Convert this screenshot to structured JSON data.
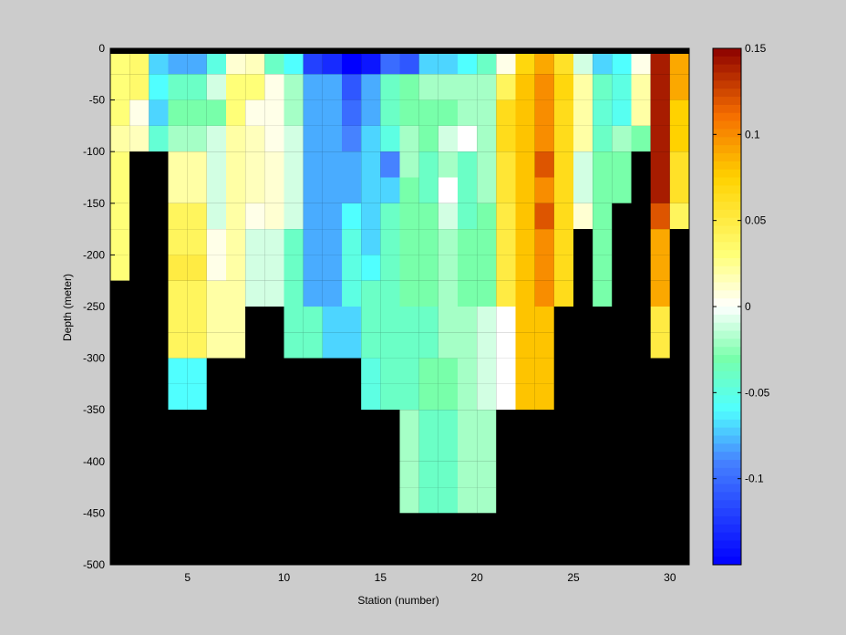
{
  "chart_data": {
    "type": "heatmap",
    "title": "",
    "xlabel": "Station (number)",
    "ylabel": "Depth (meter)",
    "xlim": [
      1,
      31
    ],
    "ylim": [
      -500,
      0
    ],
    "x_ticks": [
      5,
      10,
      15,
      20,
      25,
      30
    ],
    "y_ticks": [
      0,
      -50,
      -100,
      -150,
      -200,
      -250,
      -300,
      -350,
      -400,
      -450,
      -500
    ],
    "x_tick_labels": [
      "5",
      "10",
      "15",
      "20",
      "25",
      "30"
    ],
    "y_tick_labels": [
      "0",
      "-50",
      "-100",
      "-150",
      "-200",
      "-250",
      "-300",
      "-350",
      "-400",
      "-450",
      "-500"
    ],
    "stations": [
      1,
      2,
      3,
      4,
      5,
      6,
      7,
      8,
      9,
      10,
      11,
      12,
      13,
      14,
      15,
      16,
      17,
      18,
      19,
      20,
      21,
      22,
      23,
      24,
      25,
      26,
      27,
      28,
      29,
      30
    ],
    "depth_bins": [
      0,
      -25,
      -50,
      -75,
      -100,
      -125,
      -150,
      -175,
      -200,
      -225,
      -250,
      -275,
      -300,
      -325,
      -350,
      -375,
      -400,
      -425,
      -450,
      -475
    ],
    "values": [
      [
        0.03,
        0.035,
        -0.07,
        -0.08,
        -0.08,
        -0.05,
        0.01,
        0.015,
        -0.04,
        -0.06,
        -0.12,
        -0.13,
        -0.15,
        -0.14,
        -0.1,
        -0.11,
        -0.07,
        -0.07,
        -0.06,
        -0.04,
        0.005,
        0.07,
        0.09,
        0.06,
        -0.01,
        -0.07,
        -0.06,
        0.005,
        0.14,
        0.09
      ],
      [
        0.03,
        0.035,
        -0.06,
        -0.04,
        -0.04,
        -0.01,
        0.03,
        0.03,
        0.005,
        -0.02,
        -0.08,
        -0.08,
        -0.11,
        -0.08,
        -0.04,
        -0.03,
        -0.02,
        -0.02,
        -0.02,
        -0.02,
        0.04,
        0.08,
        0.1,
        0.07,
        0.02,
        -0.04,
        -0.05,
        0.02,
        0.14,
        0.09
      ],
      [
        0.03,
        0.005,
        -0.07,
        -0.03,
        -0.03,
        -0.03,
        0.03,
        0.005,
        0.005,
        -0.02,
        -0.08,
        -0.08,
        -0.1,
        -0.08,
        -0.04,
        -0.03,
        -0.03,
        -0.03,
        -0.02,
        -0.02,
        0.065,
        0.08,
        0.1,
        0.065,
        0.02,
        -0.045,
        -0.055,
        0.02,
        0.14,
        0.075
      ],
      [
        0.02,
        0.015,
        -0.045,
        -0.02,
        -0.02,
        -0.01,
        0.02,
        0.015,
        0.005,
        -0.01,
        -0.08,
        -0.08,
        -0.09,
        -0.07,
        -0.05,
        -0.02,
        -0.03,
        -0.01,
        0.0,
        -0.02,
        0.065,
        0.08,
        0.1,
        0.065,
        0.02,
        -0.04,
        -0.02,
        -0.03,
        0.14,
        0.075
      ],
      [
        0.03,
        null,
        null,
        0.02,
        0.02,
        -0.01,
        0.02,
        0.015,
        0.01,
        -0.01,
        -0.08,
        -0.08,
        -0.08,
        -0.07,
        -0.09,
        -0.02,
        -0.04,
        -0.02,
        -0.04,
        -0.02,
        0.055,
        0.08,
        0.12,
        0.065,
        -0.01,
        -0.03,
        -0.03,
        null,
        0.14,
        0.06
      ],
      [
        0.03,
        null,
        null,
        0.02,
        0.02,
        -0.01,
        0.02,
        0.015,
        0.01,
        -0.01,
        -0.08,
        -0.08,
        -0.08,
        -0.07,
        -0.07,
        -0.03,
        -0.04,
        0.0,
        -0.04,
        -0.02,
        0.055,
        0.08,
        0.1,
        0.065,
        -0.01,
        -0.03,
        -0.03,
        null,
        0.14,
        0.06
      ],
      [
        0.03,
        null,
        null,
        0.04,
        0.04,
        -0.01,
        0.02,
        0.005,
        0.01,
        -0.01,
        -0.08,
        -0.08,
        -0.06,
        -0.07,
        -0.04,
        -0.03,
        -0.03,
        -0.01,
        -0.04,
        -0.03,
        0.05,
        0.08,
        0.12,
        0.065,
        0.01,
        -0.03,
        null,
        null,
        0.12,
        0.04
      ],
      [
        0.03,
        null,
        null,
        0.04,
        0.04,
        0.005,
        0.02,
        -0.01,
        -0.01,
        -0.04,
        -0.08,
        -0.08,
        -0.05,
        -0.07,
        -0.04,
        -0.03,
        -0.03,
        -0.02,
        -0.03,
        -0.03,
        0.05,
        0.08,
        0.1,
        0.065,
        null,
        -0.03,
        null,
        null,
        0.09,
        null
      ],
      [
        0.03,
        null,
        null,
        0.05,
        0.05,
        0.005,
        0.02,
        -0.01,
        -0.01,
        -0.04,
        -0.08,
        -0.08,
        -0.05,
        -0.06,
        -0.04,
        -0.03,
        -0.03,
        -0.02,
        -0.03,
        -0.03,
        0.05,
        0.08,
        0.1,
        0.065,
        null,
        -0.03,
        null,
        null,
        0.09,
        null
      ],
      [
        null,
        null,
        null,
        0.04,
        0.04,
        0.02,
        0.02,
        -0.01,
        -0.01,
        -0.04,
        -0.08,
        -0.08,
        -0.05,
        -0.04,
        -0.04,
        -0.03,
        -0.03,
        -0.02,
        -0.03,
        -0.03,
        0.05,
        0.08,
        0.1,
        0.065,
        null,
        -0.03,
        null,
        null,
        0.09,
        null
      ],
      [
        null,
        null,
        null,
        0.04,
        0.04,
        0.02,
        0.02,
        null,
        null,
        -0.04,
        -0.04,
        -0.07,
        -0.07,
        -0.04,
        -0.04,
        -0.04,
        -0.04,
        -0.02,
        -0.02,
        -0.01,
        0.0,
        0.08,
        0.08,
        null,
        null,
        null,
        null,
        null,
        0.05,
        null
      ],
      [
        null,
        null,
        null,
        0.04,
        0.04,
        0.02,
        0.02,
        null,
        null,
        -0.04,
        -0.04,
        -0.07,
        -0.07,
        -0.04,
        -0.04,
        -0.04,
        -0.04,
        -0.02,
        -0.02,
        -0.01,
        0.0,
        0.08,
        0.08,
        null,
        null,
        null,
        null,
        null,
        0.05,
        null
      ],
      [
        null,
        null,
        null,
        -0.06,
        -0.06,
        null,
        null,
        null,
        null,
        null,
        null,
        null,
        null,
        -0.05,
        -0.04,
        -0.04,
        -0.03,
        -0.03,
        -0.02,
        -0.01,
        0.0,
        0.08,
        0.08,
        null,
        null,
        null,
        null,
        null,
        null,
        null
      ],
      [
        null,
        null,
        null,
        -0.06,
        -0.06,
        null,
        null,
        null,
        null,
        null,
        null,
        null,
        null,
        -0.05,
        -0.04,
        -0.04,
        -0.03,
        -0.03,
        -0.02,
        -0.01,
        0.0,
        0.08,
        0.08,
        null,
        null,
        null,
        null,
        null,
        null,
        null
      ],
      [
        null,
        null,
        null,
        null,
        null,
        null,
        null,
        null,
        null,
        null,
        null,
        null,
        null,
        null,
        null,
        -0.02,
        -0.04,
        -0.04,
        -0.02,
        -0.02,
        null,
        null,
        null,
        null,
        null,
        null,
        null,
        null,
        null,
        null
      ],
      [
        null,
        null,
        null,
        null,
        null,
        null,
        null,
        null,
        null,
        null,
        null,
        null,
        null,
        null,
        null,
        -0.02,
        -0.04,
        -0.04,
        -0.02,
        -0.02,
        null,
        null,
        null,
        null,
        null,
        null,
        null,
        null,
        null,
        null
      ],
      [
        null,
        null,
        null,
        null,
        null,
        null,
        null,
        null,
        null,
        null,
        null,
        null,
        null,
        null,
        null,
        -0.02,
        -0.04,
        -0.04,
        -0.02,
        -0.02,
        null,
        null,
        null,
        null,
        null,
        null,
        null,
        null,
        null,
        null
      ],
      [
        null,
        null,
        null,
        null,
        null,
        null,
        null,
        null,
        null,
        null,
        null,
        null,
        null,
        null,
        null,
        -0.02,
        -0.04,
        -0.04,
        -0.02,
        -0.02,
        null,
        null,
        null,
        null,
        null,
        null,
        null,
        null,
        null,
        null
      ],
      [
        null,
        null,
        null,
        null,
        null,
        null,
        null,
        null,
        null,
        null,
        null,
        null,
        null,
        null,
        null,
        null,
        null,
        null,
        null,
        null,
        null,
        null,
        null,
        null,
        null,
        null,
        null,
        null,
        null,
        null
      ],
      [
        null,
        null,
        null,
        null,
        null,
        null,
        null,
        null,
        null,
        null,
        null,
        null,
        null,
        null,
        null,
        null,
        null,
        null,
        null,
        null,
        null,
        null,
        null,
        null,
        null,
        null,
        null,
        null,
        null,
        null
      ]
    ],
    "clim": [
      -0.15,
      0.15
    ],
    "colormap": "jet",
    "no_data_color": "#000000",
    "colorbar": {
      "ticks": [
        0.15,
        0.1,
        0.05,
        0,
        -0.05,
        -0.1
      ],
      "tick_labels": [
        "0.15",
        "0.1",
        "0.05",
        "0",
        "-0.05",
        "-0.1"
      ]
    },
    "colors": {
      "figure_background": "#cccccc",
      "no_data": "#000000"
    }
  }
}
